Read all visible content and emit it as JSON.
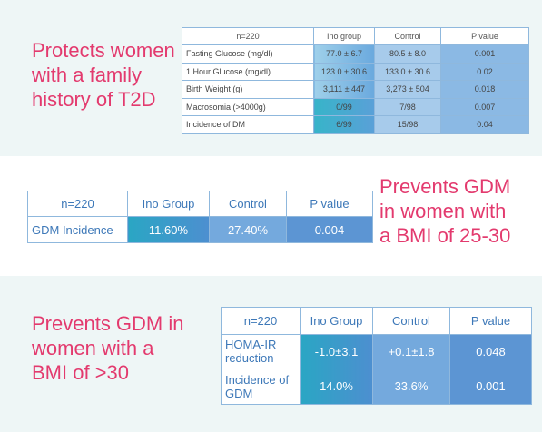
{
  "panels": [
    {
      "heading": [
        "Protects women",
        "with a family",
        "history of T2D"
      ],
      "table": {
        "header": [
          "n=220",
          "Ino group",
          "Control",
          "P value"
        ],
        "rows": [
          [
            "Fasting Glucose (mg/dl)",
            "77.0 ± 6.7",
            "80.5 ± 8.0",
            "0.001"
          ],
          [
            "1 Hour Glucose (mg/dl)",
            "123.0 ± 30.6",
            "133.0 ± 30.6",
            "0.02"
          ],
          [
            "Birth Weight (g)",
            "3,111 ± 447",
            "3,273 ± 504",
            "0.018"
          ],
          [
            "Macrosomia (>4000g)",
            "0/99",
            "7/98",
            "0.007"
          ],
          [
            "Incidence of DM",
            "6/99",
            "15/98",
            "0.04"
          ]
        ]
      }
    },
    {
      "heading": [
        "Prevents GDM",
        "in women with",
        "a BMI of 25-30"
      ],
      "table": {
        "header": [
          "n=220",
          "Ino Group",
          "Control",
          "P value"
        ],
        "rows": [
          [
            "GDM Incidence",
            "11.60%",
            "27.40%",
            "0.004"
          ]
        ]
      }
    },
    {
      "heading": [
        "Prevents GDM in",
        "women with a",
        "BMI of >30"
      ],
      "table": {
        "header": [
          "n=220",
          "Ino Group",
          "Control",
          "P value"
        ],
        "rows": [
          [
            "HOMA-IR reduction",
            "-1.0±3.1",
            "+0.1±1.8",
            "0.048"
          ],
          [
            "Incidence of GDM",
            "14.0%",
            "33.6%",
            "0.001"
          ]
        ]
      }
    }
  ]
}
